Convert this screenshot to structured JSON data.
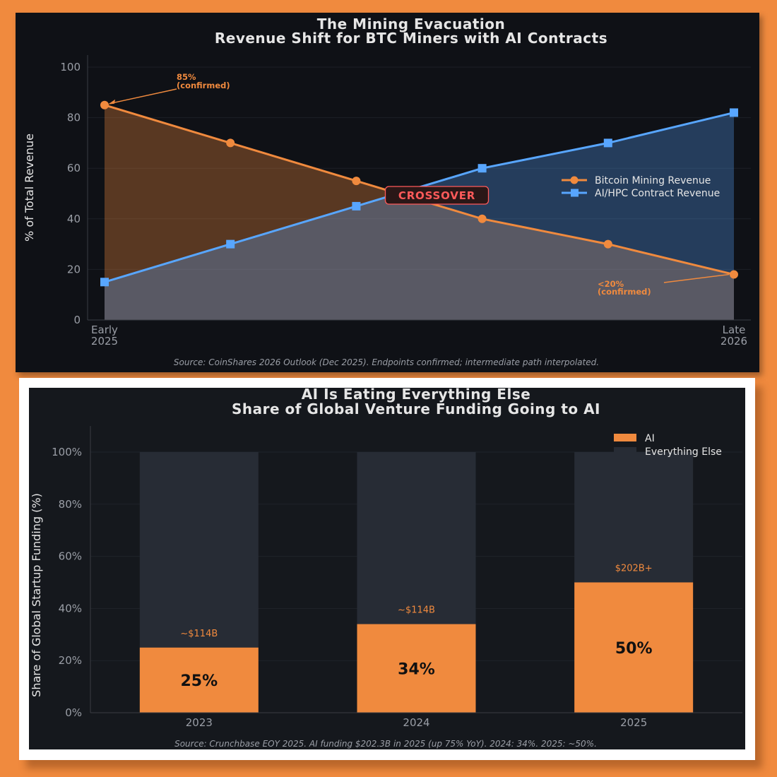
{
  "colors": {
    "page_background": "#f08a3e",
    "bitcoin": "#f08a3e",
    "ai_hpc": "#58a6ff",
    "crossover": "#ff5a5a",
    "everything_else": "#272c35",
    "ai_bar": "#f08a3e"
  },
  "chart_data": [
    {
      "type": "line",
      "title": "The Mining Evacuation",
      "subtitle": "Revenue Shift for BTC Miners with AI Contracts",
      "ylabel": "% of Total Revenue",
      "xlabel": "",
      "ylim": [
        0,
        100
      ],
      "yticks": [
        0,
        20,
        40,
        60,
        80,
        100
      ],
      "x": [
        0,
        1,
        2,
        3,
        4,
        5
      ],
      "xticklabels": [
        {
          "x": 0,
          "line1": "Early",
          "line2": "2025"
        },
        {
          "x": 5,
          "line1": "Late",
          "line2": "2026"
        }
      ],
      "series": [
        {
          "name": "Bitcoin Mining Revenue",
          "values": [
            85,
            70,
            55,
            40,
            30,
            18
          ],
          "marker": "circle",
          "color": "#f08a3e"
        },
        {
          "name": "AI/HPC Contract Revenue",
          "values": [
            15,
            30,
            45,
            60,
            70,
            82
          ],
          "marker": "square",
          "color": "#58a6ff"
        }
      ],
      "annotations": [
        {
          "line1": "85%",
          "line2": "(confirmed)",
          "point_x": 0,
          "point_y": 85
        },
        {
          "line1": "<20%",
          "line2": "(confirmed)",
          "point_x": 5,
          "point_y": 18
        },
        {
          "text": "CROSSOVER",
          "point_x": 2.5,
          "point_y": 50
        }
      ],
      "legend": "center-right",
      "grid": true,
      "source": "Source: CoinShares 2026 Outlook (Dec 2025). Endpoints confirmed; intermediate path interpolated."
    },
    {
      "type": "bar",
      "stacked": true,
      "title": "AI Is Eating Everything Else",
      "subtitle": "Share of Global Venture Funding Going to AI",
      "ylabel": "Share of Global Startup Funding (%)",
      "xlabel": "",
      "ylim": [
        0,
        110
      ],
      "yticks": [
        0,
        20,
        40,
        60,
        80,
        100
      ],
      "ytick_format": "%",
      "categories": [
        "2023",
        "2024",
        "2025"
      ],
      "series": [
        {
          "name": "AI",
          "values": [
            25,
            34,
            50
          ],
          "color": "#f08a3e"
        },
        {
          "name": "Everything Else",
          "values": [
            75,
            66,
            50
          ],
          "color": "#272c35"
        }
      ],
      "data_labels": [
        "25%",
        "34%",
        "50%"
      ],
      "funding_labels": [
        "~$114B",
        "~$114B",
        "$202B+"
      ],
      "legend": "top-right",
      "grid": true,
      "source": "Source: Crunchbase EOY 2025. AI funding $202.3B in 2025 (up 75% YoY). 2024: 34%. 2025: ~50%."
    }
  ]
}
